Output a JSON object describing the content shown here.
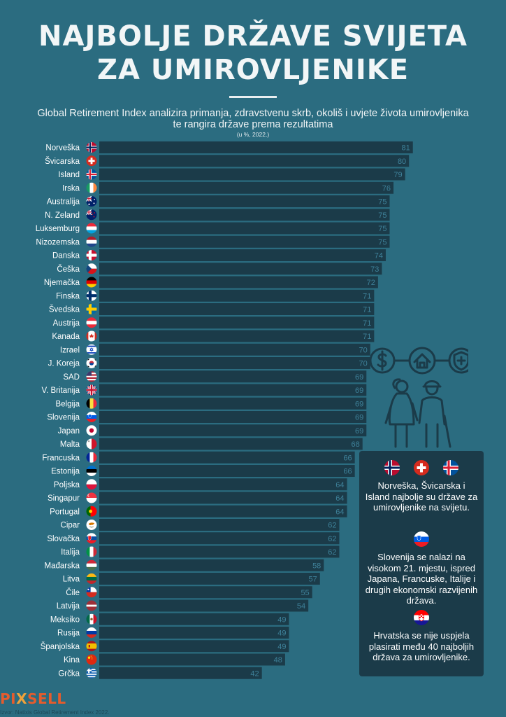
{
  "title_line1": "NAJBOLJE DRŽAVE SVIJETA",
  "title_line2": "ZA UMIROVLJENIKE",
  "subtitle_line1": "Global Retirement Index analizira primanja, zdravstvenu skrb, okoliš i uvjete života umirovljenika",
  "subtitle_line2": "te rangira države prema rezultatima",
  "unit_note": "(u %, 2022.)",
  "chart_data": {
    "type": "bar",
    "orientation": "horizontal",
    "title": "NAJBOLJE DRŽAVE SVIJETA ZA UMIROVLJENIKE",
    "subtitle": "Global Retirement Index analizira primanja, zdravstvenu skrb, okoliš i uvjete života umirovljenika te rangira države prema rezultatima",
    "unit": "(u %, 2022.)",
    "xlim": [
      0,
      100
    ],
    "categories": [
      "Norveška",
      "Švicarska",
      "Island",
      "Irska",
      "Australija",
      "N. Zeland",
      "Luksemburg",
      "Nizozemska",
      "Danska",
      "Češka",
      "Njemačka",
      "Finska",
      "Švedska",
      "Austrija",
      "Kanada",
      "Izrael",
      "J. Koreja",
      "SAD",
      "V. Britanija",
      "Belgija",
      "Slovenija",
      "Japan",
      "Malta",
      "Francuska",
      "Estonija",
      "Poljska",
      "Singapur",
      "Portugal",
      "Cipar",
      "Slovačka",
      "Italija",
      "Mađarska",
      "Litva",
      "Čile",
      "Latvija",
      "Meksiko",
      "Rusija",
      "Španjolska",
      "Kina",
      "Grčka"
    ],
    "values": [
      81,
      80,
      79,
      76,
      75,
      75,
      75,
      75,
      74,
      73,
      72,
      71,
      71,
      71,
      71,
      70,
      70,
      69,
      69,
      69,
      69,
      69,
      68,
      66,
      66,
      64,
      64,
      64,
      62,
      62,
      62,
      58,
      57,
      55,
      54,
      49,
      49,
      49,
      48,
      42
    ],
    "flags": [
      "norway-flag",
      "switzerland-flag",
      "iceland-flag",
      "ireland-flag",
      "australia-flag",
      "new-zealand-flag",
      "luxembourg-flag",
      "netherlands-flag",
      "denmark-flag",
      "czechia-flag",
      "germany-flag",
      "finland-flag",
      "sweden-flag",
      "austria-flag",
      "canada-flag",
      "israel-flag",
      "south-korea-flag",
      "usa-flag",
      "uk-flag",
      "belgium-flag",
      "slovenia-flag",
      "japan-flag",
      "malta-flag",
      "france-flag",
      "estonia-flag",
      "poland-flag",
      "singapore-flag",
      "portugal-flag",
      "cyprus-flag",
      "slovakia-flag",
      "italy-flag",
      "hungary-flag",
      "lithuania-flag",
      "chile-flag",
      "latvia-flag",
      "mexico-flag",
      "russia-flag",
      "spain-flag",
      "china-flag",
      "greece-flag"
    ]
  },
  "illustration_icons": [
    "dollar-icon",
    "house-icon",
    "shield-plus-icon",
    "elderly-couple-icon"
  ],
  "info_box": {
    "flags_top": [
      "norway-flag",
      "switzerland-flag",
      "iceland-flag"
    ],
    "text1": "Norveška, Švicarska i Island najbolje su države za umirovljenike na svijetu.",
    "flag_mid": "slovenia-flag",
    "text2": "Slovenija se nalazi na visokom 21. mjestu, ispred Japana, Francuske, Italije i drugih ekonomski razvijenih država.",
    "flag_bottom": "croatia-flag",
    "text3": "Hrvatska se nije uspjela plasirati među 40 najboljih država za umirovljenike."
  },
  "colors": {
    "background": "#2b6c80",
    "bar": "#1b3b49",
    "bar_value": "#3e8199",
    "logo": "#e65c2d"
  },
  "logo_text": "PIXSELL",
  "source": "Izvor: Natixis Global Retirement Index 2022."
}
